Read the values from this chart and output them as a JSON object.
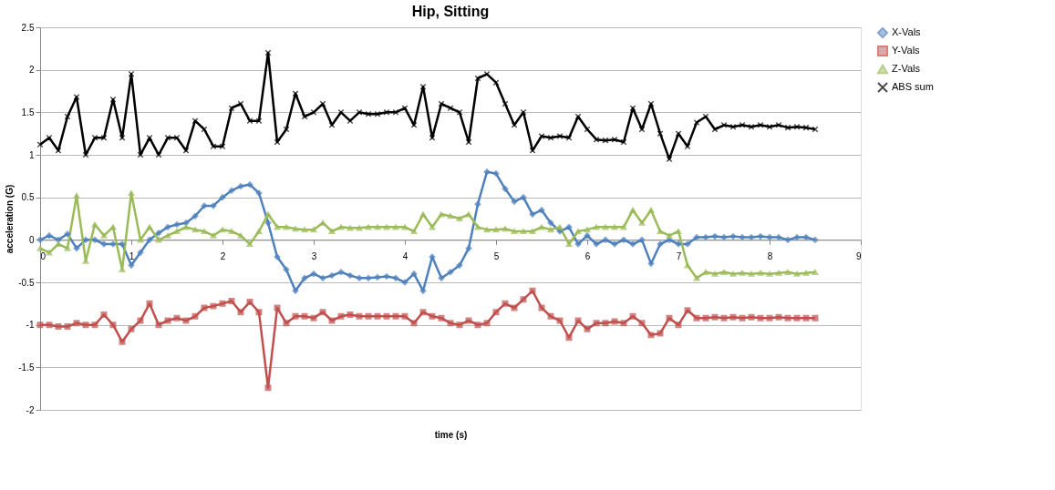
{
  "chart_data": {
    "type": "line",
    "title": "Hip, Sitting",
    "xlabel": "time (s)",
    "ylabel": "acceleration (G)",
    "x": [
      0,
      0.1,
      0.2,
      0.3,
      0.4,
      0.5,
      0.6,
      0.7,
      0.8,
      0.9,
      1.0,
      1.1,
      1.2,
      1.3,
      1.4,
      1.5,
      1.6,
      1.7,
      1.8,
      1.9,
      2.0,
      2.1,
      2.2,
      2.3,
      2.4,
      2.5,
      2.6,
      2.7,
      2.8,
      2.9,
      3.0,
      3.1,
      3.2,
      3.3,
      3.4,
      3.5,
      3.6,
      3.7,
      3.8,
      3.9,
      4.0,
      4.1,
      4.2,
      4.3,
      4.4,
      4.5,
      4.6,
      4.7,
      4.8,
      4.9,
      5.0,
      5.1,
      5.2,
      5.3,
      5.4,
      5.5,
      5.6,
      5.7,
      5.8,
      5.9,
      6.0,
      6.1,
      6.2,
      6.3,
      6.4,
      6.5,
      6.6,
      6.7,
      6.8,
      6.9,
      7.0,
      7.1,
      7.2,
      7.3,
      7.4,
      7.5,
      7.6,
      7.7,
      7.8,
      7.9,
      8.0,
      8.1,
      8.2,
      8.3,
      8.4,
      8.5
    ],
    "series": [
      {
        "name": "X-Vals",
        "color": "#4f81bd",
        "marker": "diamond",
        "values": [
          0.0,
          0.05,
          0.0,
          0.07,
          -0.1,
          0.0,
          0.0,
          -0.05,
          -0.05,
          -0.05,
          -0.3,
          -0.15,
          0.0,
          0.08,
          0.15,
          0.18,
          0.2,
          0.28,
          0.4,
          0.4,
          0.5,
          0.58,
          0.63,
          0.65,
          0.55,
          0.2,
          -0.2,
          -0.35,
          -0.6,
          -0.45,
          -0.4,
          -0.45,
          -0.42,
          -0.38,
          -0.42,
          -0.45,
          -0.45,
          -0.44,
          -0.43,
          -0.45,
          -0.5,
          -0.4,
          -0.6,
          -0.2,
          -0.45,
          -0.38,
          -0.3,
          -0.1,
          0.42,
          0.8,
          0.78,
          0.6,
          0.45,
          0.5,
          0.3,
          0.35,
          0.2,
          0.1,
          0.15,
          -0.05,
          0.05,
          -0.05,
          0.0,
          -0.05,
          0.0,
          -0.05,
          0.0,
          -0.28,
          -0.05,
          0.0,
          -0.05,
          -0.05,
          0.03,
          0.03,
          0.04,
          0.03,
          0.04,
          0.03,
          0.03,
          0.04,
          0.03,
          0.03,
          0.0,
          0.03,
          0.03,
          0.0
        ]
      },
      {
        "name": "Y-Vals",
        "color": "#c0504d",
        "marker": "square",
        "values": [
          -1.0,
          -1.0,
          -1.02,
          -1.02,
          -0.98,
          -1.0,
          -1.0,
          -0.88,
          -1.0,
          -1.2,
          -1.05,
          -0.95,
          -0.75,
          -1.0,
          -0.95,
          -0.92,
          -0.95,
          -0.9,
          -0.8,
          -0.78,
          -0.75,
          -0.72,
          -0.85,
          -0.73,
          -0.85,
          -1.74,
          -0.8,
          -0.98,
          -0.9,
          -0.9,
          -0.92,
          -0.85,
          -0.95,
          -0.9,
          -0.88,
          -0.9,
          -0.9,
          -0.9,
          -0.9,
          -0.9,
          -0.9,
          -0.98,
          -0.85,
          -0.9,
          -0.92,
          -0.98,
          -1.0,
          -0.95,
          -1.0,
          -0.98,
          -0.85,
          -0.75,
          -0.8,
          -0.7,
          -0.6,
          -0.8,
          -0.9,
          -0.95,
          -1.15,
          -0.95,
          -1.05,
          -0.98,
          -0.98,
          -0.96,
          -0.98,
          -0.9,
          -0.98,
          -1.12,
          -1.1,
          -0.92,
          -1.0,
          -0.83,
          -0.92,
          -0.92,
          -0.91,
          -0.92,
          -0.91,
          -0.92,
          -0.91,
          -0.92,
          -0.92,
          -0.91,
          -0.92,
          -0.92,
          -0.92,
          -0.92
        ]
      },
      {
        "name": "Z-Vals",
        "color": "#9bbb59",
        "marker": "triangle",
        "values": [
          -0.1,
          -0.15,
          -0.05,
          -0.1,
          0.52,
          -0.25,
          0.18,
          0.05,
          0.15,
          -0.35,
          0.55,
          0.0,
          0.15,
          0.0,
          0.05,
          0.1,
          0.15,
          0.12,
          0.1,
          0.05,
          0.12,
          0.1,
          0.05,
          -0.05,
          0.1,
          0.3,
          0.15,
          0.15,
          0.13,
          0.12,
          0.12,
          0.2,
          0.1,
          0.15,
          0.14,
          0.14,
          0.15,
          0.15,
          0.15,
          0.15,
          0.15,
          0.1,
          0.3,
          0.15,
          0.3,
          0.28,
          0.25,
          0.3,
          0.15,
          0.12,
          0.12,
          0.13,
          0.1,
          0.1,
          0.1,
          0.15,
          0.12,
          0.15,
          -0.05,
          0.1,
          0.12,
          0.15,
          0.15,
          0.15,
          0.15,
          0.35,
          0.2,
          0.35,
          0.1,
          0.05,
          0.1,
          -0.3,
          -0.45,
          -0.38,
          -0.4,
          -0.38,
          -0.4,
          -0.39,
          -0.4,
          -0.39,
          -0.4,
          -0.39,
          -0.38,
          -0.4,
          -0.39,
          -0.38
        ]
      },
      {
        "name": "ABS sum",
        "color": "#000000",
        "marker": "cross",
        "values": [
          1.12,
          1.2,
          1.05,
          1.45,
          1.68,
          1.0,
          1.2,
          1.2,
          1.65,
          1.2,
          1.95,
          1.0,
          1.2,
          1.0,
          1.2,
          1.2,
          1.05,
          1.4,
          1.3,
          1.1,
          1.1,
          1.55,
          1.6,
          1.4,
          1.4,
          2.2,
          1.15,
          1.3,
          1.72,
          1.45,
          1.5,
          1.6,
          1.35,
          1.5,
          1.4,
          1.5,
          1.48,
          1.48,
          1.5,
          1.5,
          1.55,
          1.35,
          1.8,
          1.2,
          1.6,
          1.55,
          1.5,
          1.15,
          1.9,
          1.95,
          1.85,
          1.6,
          1.35,
          1.5,
          1.05,
          1.22,
          1.2,
          1.22,
          1.2,
          1.45,
          1.3,
          1.18,
          1.17,
          1.18,
          1.15,
          1.55,
          1.3,
          1.6,
          1.25,
          0.95,
          1.25,
          1.1,
          1.38,
          1.45,
          1.3,
          1.35,
          1.33,
          1.35,
          1.33,
          1.35,
          1.33,
          1.35,
          1.32,
          1.33,
          1.32,
          1.3
        ]
      }
    ],
    "xlim": [
      0,
      9
    ],
    "xticks": [
      0,
      1,
      2,
      3,
      4,
      5,
      6,
      7,
      8,
      9
    ],
    "ylim": [
      -2,
      2.5
    ],
    "yticks": [
      -2,
      -1.5,
      -1,
      -0.5,
      0,
      0.5,
      1,
      1.5,
      2,
      2.5
    ],
    "grid": "y",
    "legend": "right",
    "line_style": "solid"
  }
}
